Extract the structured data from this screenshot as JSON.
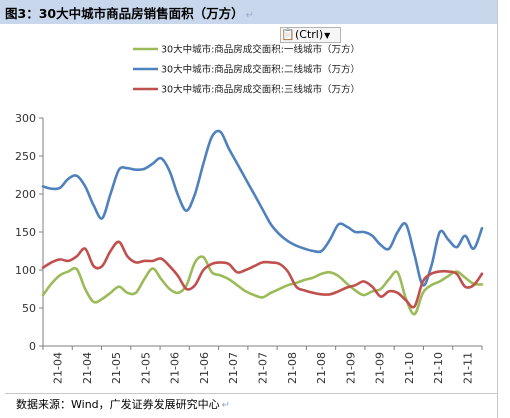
{
  "header": {
    "title": "图3：30大中城市商品房销售面积（万方）",
    "mark": "↵"
  },
  "toolbar": {
    "paste_icon": "clipboard-icon",
    "paste_label": "(Ctrl)",
    "dropdown_icon": "chevron-down-icon"
  },
  "footer": {
    "source": "数据来源：Wind，广发证券发展研究中心",
    "mark": "↵"
  },
  "chart_data": {
    "type": "line",
    "title": "",
    "xlabel": "",
    "ylabel": "",
    "ylim": [
      0,
      300
    ],
    "yticks": [
      0,
      50,
      100,
      150,
      200,
      250,
      300
    ],
    "grid": false,
    "legend_position": "top",
    "x_tick_labels": [
      "21-04",
      "21-04",
      "21-05",
      "21-05",
      "21-06",
      "21-06",
      "21-07",
      "21-07",
      "21-08",
      "21-08",
      "21-09",
      "21-09",
      "21-10",
      "21-10",
      "21-11"
    ],
    "series": [
      {
        "name": "30大中城市:商品房成交面积:一线城市（万方）",
        "color": "#9bbb59",
        "values": [
          67,
          82,
          93,
          98,
          101,
          75,
          58,
          62,
          70,
          78,
          70,
          70,
          88,
          102,
          88,
          75,
          70,
          80,
          110,
          117,
          97,
          93,
          88,
          80,
          72,
          67,
          64,
          70,
          75,
          80,
          83,
          87,
          90,
          95,
          97,
          92,
          82,
          73,
          67,
          72,
          75,
          88,
          97,
          62,
          42,
          70,
          80,
          85,
          92,
          98,
          90,
          82,
          81
        ]
      },
      {
        "name": "30大中城市:商品房成交面积:二线城市（万方）",
        "color": "#4f81bd",
        "values": [
          210,
          207,
          208,
          220,
          224,
          210,
          185,
          168,
          200,
          232,
          234,
          232,
          233,
          240,
          247,
          230,
          198,
          178,
          200,
          240,
          275,
          282,
          260,
          240,
          220,
          200,
          180,
          160,
          147,
          138,
          132,
          128,
          125,
          125,
          140,
          160,
          157,
          150,
          150,
          145,
          133,
          128,
          150,
          160,
          120,
          80,
          105,
          150,
          140,
          130,
          145,
          128,
          155
        ]
      },
      {
        "name": "30大中城市:商品房成交面积:三线城市（万方）",
        "color": "#c0504d",
        "values": [
          103,
          110,
          114,
          112,
          118,
          128,
          105,
          105,
          125,
          137,
          118,
          110,
          112,
          112,
          115,
          105,
          92,
          75,
          80,
          100,
          108,
          110,
          108,
          97,
          100,
          105,
          110,
          110,
          108,
          98,
          78,
          73,
          70,
          68,
          68,
          72,
          77,
          80,
          85,
          78,
          65,
          72,
          70,
          60,
          52,
          85,
          95,
          98,
          98,
          95,
          78,
          80,
          95
        ]
      }
    ]
  }
}
